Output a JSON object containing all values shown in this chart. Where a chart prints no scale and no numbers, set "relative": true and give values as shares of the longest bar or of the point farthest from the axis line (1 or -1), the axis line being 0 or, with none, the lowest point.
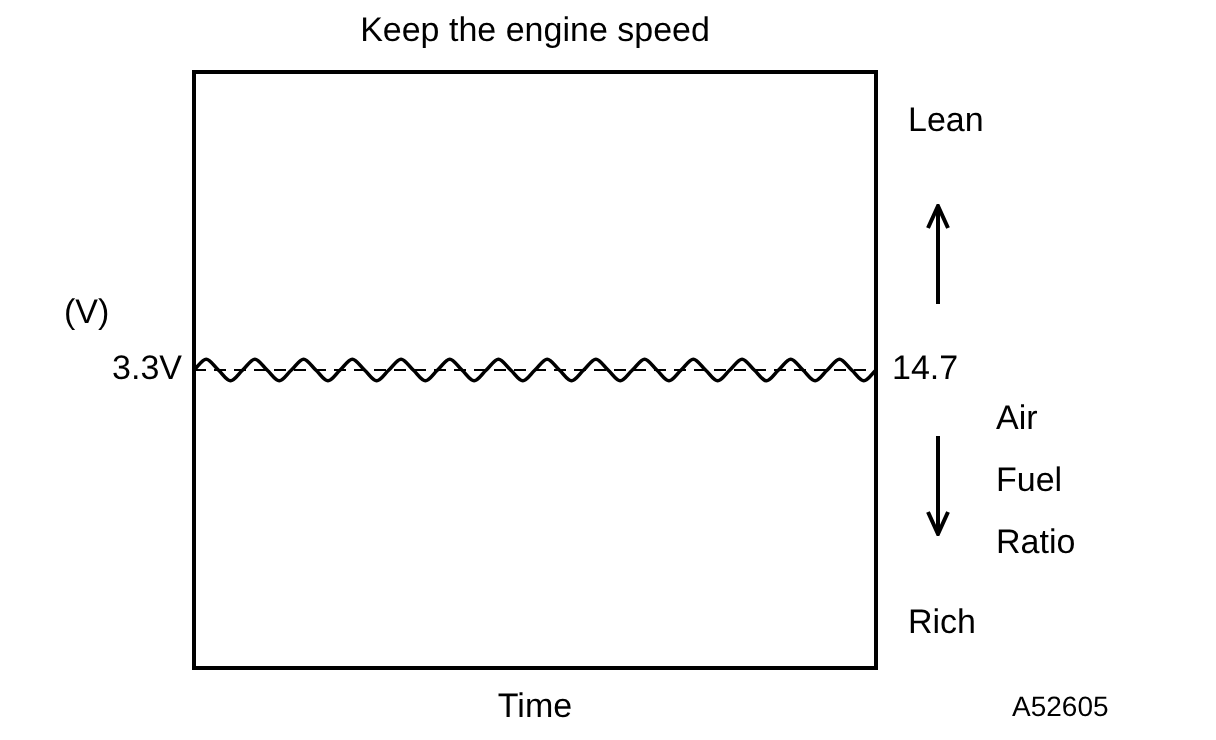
{
  "chart_data": {
    "type": "line",
    "title": "Keep the engine speed",
    "xlabel": "Time",
    "ylabel": "(V)",
    "relative": true,
    "marker": "none",
    "line_style": "solid",
    "categories": [
      null,
      null,
      null,
      null,
      null,
      null,
      null,
      null,
      null,
      null,
      null,
      null,
      null,
      null,
      null,
      null,
      null,
      null,
      null,
      null,
      null,
      null,
      null,
      null,
      null,
      null,
      null,
      null,
      null,
      null,
      null,
      null,
      null,
      null,
      null,
      null,
      null,
      null,
      null,
      null,
      null,
      null,
      null,
      null,
      null,
      null,
      null,
      null,
      null,
      null,
      null,
      null,
      null,
      null,
      null,
      null,
      null
    ],
    "series": [
      {
        "color": "#000000",
        "values": [
          0.965,
          1,
          0.965,
          0.93,
          0.965,
          1,
          0.965,
          0.93,
          0.965,
          1,
          0.965,
          0.93,
          0.965,
          1,
          0.965,
          0.93,
          0.965,
          1,
          0.965,
          0.93,
          0.965,
          1,
          0.965,
          0.93,
          0.965,
          1,
          0.965,
          0.93,
          0.965,
          1,
          0.965,
          0.93,
          0.965,
          1,
          0.965,
          0.93,
          0.965,
          1,
          0.965,
          0.93,
          0.965,
          1,
          0.965,
          0.93,
          0.965,
          1,
          0.965,
          0.93,
          0.965,
          1,
          0.965,
          0.93,
          0.965,
          1,
          0.965,
          0.93,
          0.965
        ]
      }
    ],
    "ref_lines": [
      {
        "axis": "y",
        "value": 0.965,
        "label": "3.3V",
        "line_style": "dashed"
      }
    ],
    "annotations": [
      "Lean",
      "14.7",
      "Air Fuel Ratio",
      "Rich",
      "A52605"
    ]
  }
}
